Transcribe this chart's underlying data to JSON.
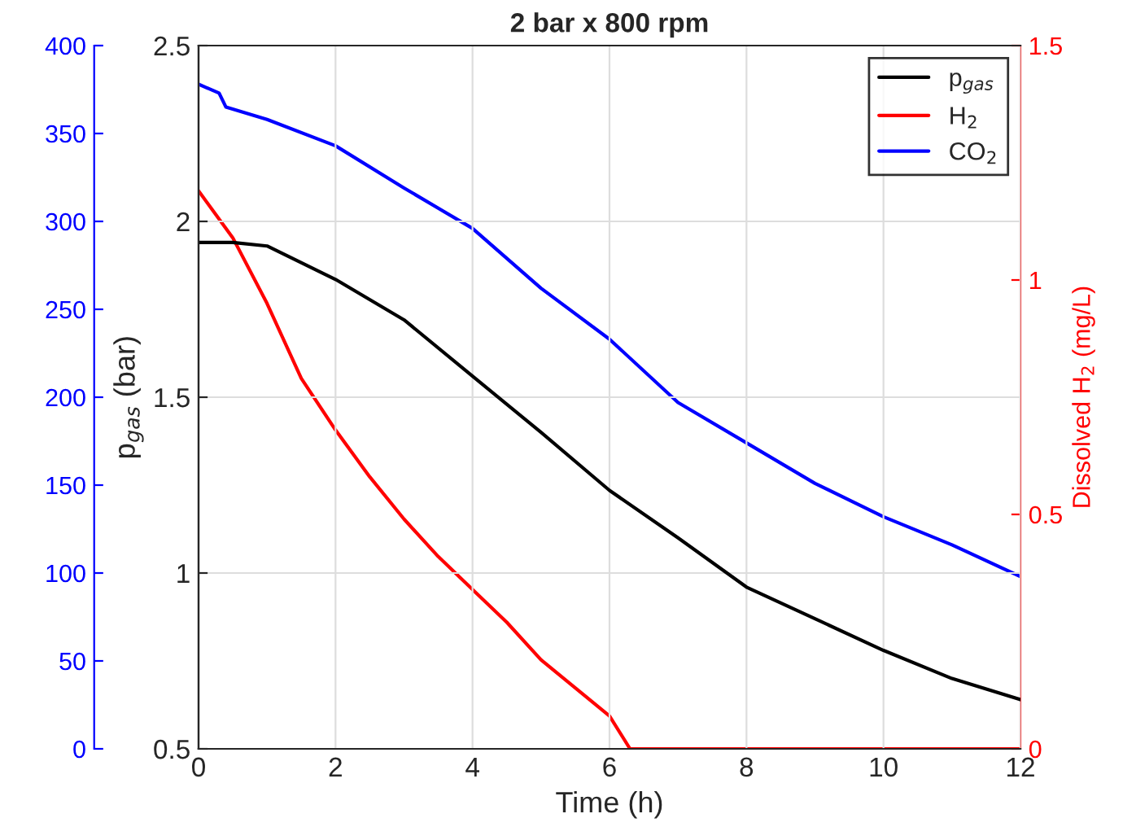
{
  "chart_data": {
    "type": "line",
    "title": "2 bar x 800 rpm",
    "xlabel": "Time (h)",
    "ylabel": "p$_{gas}$ (bar)",
    "y2label": "Dissolved H$_{2}$ (mg/L)",
    "xlim": [
      0,
      12
    ],
    "xticks": [
      0,
      2,
      4,
      6,
      8,
      10,
      12
    ],
    "ylim": [
      0.5,
      2.5
    ],
    "yticks": [
      0.5,
      1,
      1.5,
      2,
      2.5
    ],
    "y2lim": [
      0,
      1.5
    ],
    "y2ticks": [
      0,
      0.5,
      1,
      1.5
    ],
    "y3lim": [
      0,
      400
    ],
    "y3ticks": [
      0,
      50,
      100,
      150,
      200,
      250,
      300,
      350,
      400
    ],
    "grid": true,
    "legend": "top right",
    "line_style": "solid",
    "marker": "none",
    "series": [
      {
        "name": "p$_{gas}$",
        "color": "#000000",
        "axis": "y",
        "x": [
          0,
          0.5,
          1,
          2,
          3,
          4,
          5,
          6,
          7,
          8,
          9,
          10,
          11,
          12
        ],
        "values": [
          1.94,
          1.94,
          1.93,
          1.835,
          1.72,
          1.56,
          1.4,
          1.235,
          1.1,
          0.96,
          0.87,
          0.78,
          0.7,
          0.64
        ]
      },
      {
        "name": "H$_{2}$",
        "color": "#ff0000",
        "axis": "y2",
        "x": [
          0,
          0.5,
          1,
          1.5,
          2,
          2.5,
          3,
          3.5,
          4,
          4.5,
          5,
          5.5,
          6,
          6.3,
          8,
          10,
          12
        ],
        "values": [
          1.19,
          1.09,
          0.95,
          0.79,
          0.68,
          0.58,
          0.49,
          0.41,
          0.34,
          0.27,
          0.19,
          0.13,
          0.07,
          0,
          0,
          0,
          0
        ]
      },
      {
        "name": "CO$_{2}$",
        "color": "#0000ff",
        "axis": "y3",
        "x": [
          0,
          0.3,
          0.4,
          1,
          2,
          3,
          4,
          5,
          6,
          7,
          8,
          9,
          10,
          11,
          12
        ],
        "values": [
          378,
          373,
          365,
          358,
          343,
          319,
          296,
          262,
          233,
          197,
          174,
          151,
          132,
          116,
          98
        ]
      }
    ]
  }
}
